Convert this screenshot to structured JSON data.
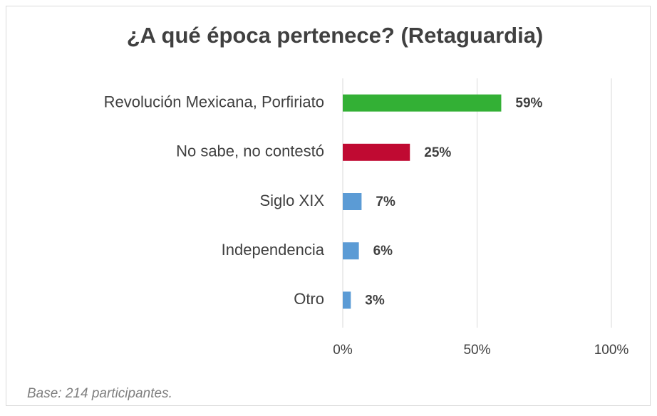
{
  "chart_data": {
    "type": "barh",
    "title": "¿A qué época pertenece? (Retaguardia)",
    "categories": [
      "Revolución Mexicana, Porfiriato",
      "No sabe, no contestó",
      "Siglo XIX",
      "Independencia",
      "Otro"
    ],
    "values": [
      59,
      25,
      7,
      6,
      3
    ],
    "value_labels": [
      "59%",
      "25%",
      "7%",
      "6%",
      "3%"
    ],
    "colors": [
      "#33b035",
      "#c00a32",
      "#5b9bd5",
      "#5b9bd5",
      "#5b9bd5"
    ],
    "xlim": [
      0,
      100
    ],
    "xticks": [
      {
        "value": 0,
        "label": "0%"
      },
      {
        "value": 50,
        "label": "50%"
      },
      {
        "value": 100,
        "label": "100%"
      }
    ],
    "grid": true,
    "footnote": "Base: 214 participantes."
  }
}
